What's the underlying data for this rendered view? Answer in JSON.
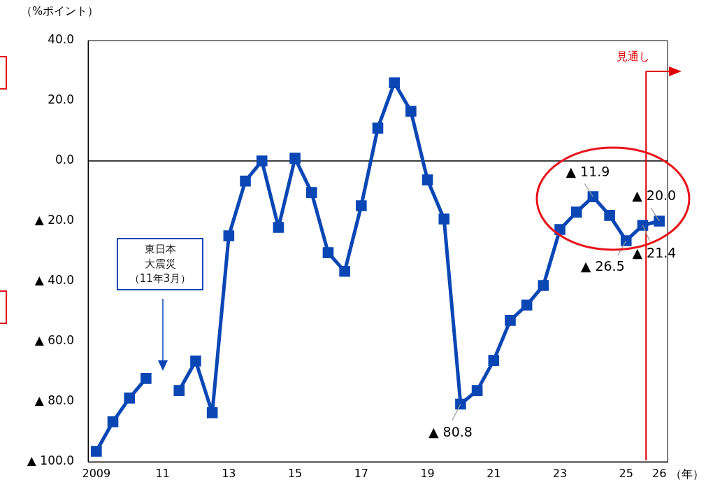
{
  "chart_data": {
    "type": "line",
    "xlabel": "（年）",
    "ylabel": "（%ポイント）",
    "x": [
      2009,
      2009.5,
      2010,
      2010.5,
      2011,
      2011.5,
      2012,
      2012.5,
      2013,
      2013.5,
      2014,
      2014.5,
      2015,
      2015.5,
      2016,
      2016.5,
      2017,
      2017.5,
      2018,
      2018.5,
      2019,
      2019.5,
      2020,
      2020.5,
      2021,
      2021.5,
      2022,
      2022.5,
      2023,
      2023.5,
      2024,
      2024.5,
      2025,
      2025.5,
      2026
    ],
    "series": [
      {
        "color": "#0a47b5",
        "values": [
          -96.5,
          -86.7,
          -78.8,
          -72.3,
          null,
          -76.3,
          -66.5,
          -83.7,
          -24.9,
          -6.7,
          0,
          -22.1,
          0.9,
          -10.5,
          -30.5,
          -36.7,
          -14.9,
          10.9,
          26,
          16.5,
          -6.3,
          -19.3,
          -80.8,
          -76.3,
          -66.3,
          -53,
          -47.9,
          -41.4,
          -22.8,
          -17,
          -11.9,
          -18.1,
          -26.5,
          -21.4,
          -20.0
        ]
      }
    ],
    "xlim": [
      2008.75,
      2026.25
    ],
    "xticks": [
      {
        "value": 2009,
        "label": "2009"
      },
      {
        "value": 2011,
        "label": "11"
      },
      {
        "value": 2013,
        "label": "13"
      },
      {
        "value": 2015,
        "label": "15"
      },
      {
        "value": 2017,
        "label": "17"
      },
      {
        "value": 2019,
        "label": "19"
      },
      {
        "value": 2021,
        "label": "21"
      },
      {
        "value": 2023,
        "label": "23"
      },
      {
        "value": 2025,
        "label": "25"
      },
      {
        "value": 2026,
        "label": "26"
      }
    ],
    "ylim": [
      -100,
      40
    ],
    "yticks": [
      {
        "value": 40,
        "label": "40.0"
      },
      {
        "value": 20,
        "label": "20.0"
      },
      {
        "value": 0,
        "label": "0.0"
      },
      {
        "value": -20,
        "label": "▲ 20.0"
      },
      {
        "value": -40,
        "label": "▲ 40.0"
      },
      {
        "value": -60,
        "label": "▲ 60.0"
      },
      {
        "value": -80,
        "label": "▲ 80.0"
      },
      {
        "value": -100,
        "label": "▲ 100.0"
      }
    ],
    "grid": false,
    "legend": false,
    "marker": "square",
    "line_style": "solid",
    "ref_lines": [
      {
        "axis": "y",
        "value": 0,
        "color": "#000000"
      },
      {
        "axis": "x",
        "value": 2025.6,
        "label": "見通し",
        "color": "#e00000"
      }
    ],
    "annotations": [
      {
        "text": "▲ 80.8",
        "x": 2020,
        "y": -80.8
      },
      {
        "text": "▲ 11.9",
        "x": 2024,
        "y": -11.9
      },
      {
        "text": "▲ 26.5",
        "x": 2025,
        "y": -26.5
      },
      {
        "text": "▲ 21.4",
        "x": 2025.5,
        "y": -21.4
      },
      {
        "text": "▲ 20.0",
        "x": 2026,
        "y": -20.0
      },
      "東日本大震災",
      "（11年3月）"
    ]
  }
}
